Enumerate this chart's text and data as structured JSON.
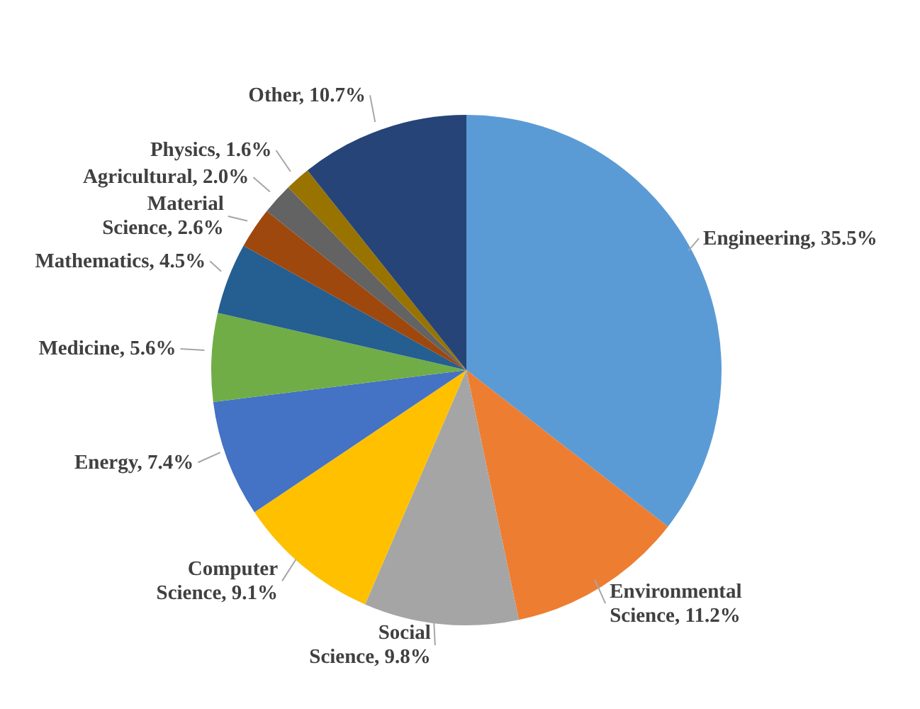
{
  "chart_data": {
    "type": "pie",
    "categories": [
      "Engineering",
      "Environmental Science",
      "Social Science",
      "Computer Science",
      "Energy",
      "Medicine",
      "Mathematics",
      "Material Science",
      "Agricultural",
      "Physics",
      "Other"
    ],
    "values": [
      35.5,
      11.2,
      9.8,
      9.1,
      7.4,
      5.6,
      4.5,
      2.6,
      2.0,
      1.6,
      10.7
    ],
    "value_labels": [
      "35.5%",
      "11.2%",
      "9.8%",
      "9.1%",
      "7.4%",
      "5.6%",
      "4.5%",
      "2.6%",
      "2.0%",
      "1.6%",
      "10.7%"
    ],
    "colors": [
      "#5b9bd5",
      "#ed7d31",
      "#a5a5a5",
      "#ffc000",
      "#4472c4",
      "#70ad47",
      "#255e91",
      "#9e480e",
      "#636363",
      "#997300",
      "#264478"
    ],
    "legend": false
  }
}
